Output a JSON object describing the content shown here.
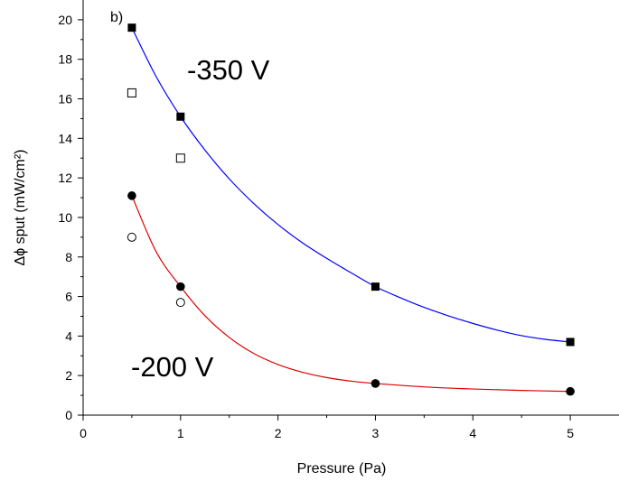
{
  "chart_data": {
    "type": "scatter",
    "panel_label": "b)",
    "xlabel": "Pressure (Pa)",
    "ylabel": "Δϕ sput (mW/cm²)",
    "xlim": [
      0,
      5.5
    ],
    "ylim": [
      0,
      21
    ],
    "x_ticks": [
      0,
      1,
      2,
      3,
      4,
      5
    ],
    "y_ticks": [
      0,
      2,
      4,
      6,
      8,
      10,
      12,
      14,
      16,
      18,
      20
    ],
    "grid": false,
    "annotations": [
      "-350 V",
      "-200 V"
    ],
    "series": [
      {
        "group": "-350 V",
        "marker": "filled-square",
        "color": "#000000",
        "x": [
          0.5,
          1,
          3,
          5
        ],
        "y": [
          19.6,
          15.1,
          6.5,
          3.7
        ]
      },
      {
        "group": "-350 V",
        "marker": "open-square",
        "color": "#000000",
        "x": [
          0.5,
          1
        ],
        "y": [
          16.3,
          13.0
        ]
      },
      {
        "group": "-200 V",
        "marker": "filled-circle",
        "color": "#000000",
        "x": [
          0.5,
          1,
          3,
          5
        ],
        "y": [
          11.1,
          6.5,
          1.6,
          1.2
        ]
      },
      {
        "group": "-200 V",
        "marker": "open-circle",
        "color": "#000000",
        "x": [
          0.5,
          1
        ],
        "y": [
          9.0,
          5.7
        ]
      }
    ],
    "fits": [
      {
        "group": "-350 V",
        "color": "#0000ff",
        "model": "exponential decay",
        "x": [
          0.5,
          0.75,
          1,
          1.25,
          1.5,
          1.75,
          2,
          2.25,
          2.5,
          2.75,
          3,
          3.25,
          3.5,
          3.75,
          4,
          4.25,
          4.5,
          4.75,
          5
        ],
        "y": [
          19.6,
          17.12,
          15.1,
          13.41,
          11.95,
          10.71,
          9.64,
          8.72,
          7.93,
          7.2,
          6.5,
          5.95,
          5.45,
          5.02,
          4.64,
          4.3,
          4.02,
          3.83,
          3.7
        ]
      },
      {
        "group": "-200 V",
        "color": "#dd0000",
        "model": "exponential decay",
        "x": [
          0.5,
          0.75,
          1,
          1.25,
          1.5,
          1.75,
          2,
          2.25,
          2.5,
          2.75,
          3,
          3.5,
          4,
          4.5,
          5
        ],
        "y": [
          11.1,
          8.26,
          6.5,
          5.03,
          3.93,
          3.12,
          2.56,
          2.17,
          1.9,
          1.72,
          1.6,
          1.43,
          1.32,
          1.25,
          1.2
        ]
      }
    ]
  }
}
